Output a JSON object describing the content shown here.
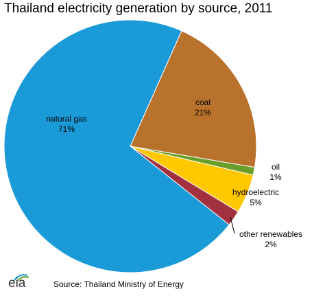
{
  "chart_data": {
    "type": "pie",
    "title": "Thailand electricity generation by source, 2011",
    "slices": [
      {
        "name": "coal",
        "value": 21,
        "label": "21%",
        "color": "#B8722C"
      },
      {
        "name": "oil",
        "value": 1,
        "label": "1%",
        "color": "#6A9E2A"
      },
      {
        "name": "hydroelectric",
        "value": 5,
        "label": "5%",
        "color": "#FFC800"
      },
      {
        "name": "other renewables",
        "value": 2,
        "label": "2%",
        "color": "#A3303E"
      },
      {
        "name": "natural gas",
        "value": 71,
        "label": "71%",
        "color": "#1B9AD8"
      }
    ],
    "legend": "none"
  },
  "footer": {
    "logo_text": "eia",
    "source": "Source: Thailand Ministry of Energy"
  }
}
